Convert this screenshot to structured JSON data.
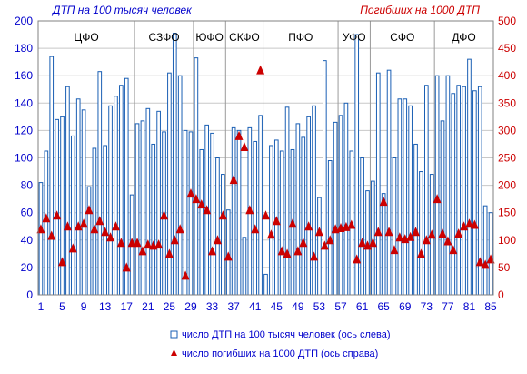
{
  "chart_data": {
    "type": "bar",
    "left_axis_title": "ДТП на 100 тысяч человек",
    "right_axis_title": "Погибших на 1000 ДТП",
    "y_left": {
      "min": 0,
      "max": 200,
      "step": 20
    },
    "y_right": {
      "min": 0,
      "max": 500,
      "step": 50
    },
    "x_tick_labels": [
      1,
      5,
      9,
      13,
      17,
      21,
      25,
      29,
      33,
      37,
      41,
      45,
      49,
      53,
      57,
      61,
      65,
      69,
      73,
      77,
      81,
      85
    ],
    "regions": [
      {
        "label": "ЦФО",
        "start": 1,
        "end": 18
      },
      {
        "label": "СЗФО",
        "start": 19,
        "end": 29
      },
      {
        "label": "ЮФО",
        "start": 30,
        "end": 35
      },
      {
        "label": "СКФО",
        "start": 36,
        "end": 42
      },
      {
        "label": "ПФО",
        "start": 43,
        "end": 56
      },
      {
        "label": "УФО",
        "start": 57,
        "end": 62
      },
      {
        "label": "СФО",
        "start": 63,
        "end": 74
      },
      {
        "label": "ДФО",
        "start": 75,
        "end": 85
      }
    ],
    "series": [
      {
        "name": "число ДТП на 100 тысяч человек (ось слева)",
        "type": "bar",
        "axis": "left",
        "color": "#1a5fb4",
        "values": [
          82,
          105,
          174,
          128,
          130,
          152,
          116,
          143,
          135,
          79,
          107,
          163,
          109,
          138,
          145,
          153,
          158,
          73,
          125,
          127,
          136,
          110,
          134,
          119,
          162,
          191,
          160,
          120,
          119,
          173,
          106,
          124,
          118,
          100,
          88,
          62,
          122,
          120,
          42,
          122,
          112,
          131,
          15,
          109,
          113,
          105,
          137,
          106,
          125,
          115,
          130,
          138,
          71,
          171,
          98,
          126,
          131,
          140,
          105,
          190,
          100,
          76,
          83,
          162,
          74,
          164,
          100,
          143,
          143,
          138,
          110,
          90,
          153,
          88,
          160,
          127,
          160,
          147,
          153,
          152,
          172,
          149,
          152,
          65,
          60
        ]
      },
      {
        "name": "число погибших на 1000 ДТП (ось справа)",
        "type": "scatter",
        "axis": "right",
        "color": "#cc0000",
        "values": [
          120,
          140,
          108,
          145,
          60,
          125,
          85,
          125,
          130,
          155,
          120,
          135,
          115,
          105,
          125,
          95,
          50,
          95,
          95,
          80,
          92,
          90,
          92,
          145,
          75,
          100,
          120,
          35,
          185,
          175,
          165,
          155,
          80,
          100,
          145,
          70,
          210,
          290,
          270,
          155,
          120,
          410,
          145,
          110,
          135,
          80,
          75,
          130,
          80,
          95,
          125,
          70,
          115,
          90,
          100,
          120,
          122,
          124,
          128,
          65,
          95,
          90,
          95,
          115,
          170,
          115,
          82,
          105,
          102,
          106,
          115,
          75,
          100,
          110,
          175,
          112,
          98,
          82,
          112,
          125,
          130,
          128,
          60,
          55,
          65
        ]
      }
    ]
  }
}
